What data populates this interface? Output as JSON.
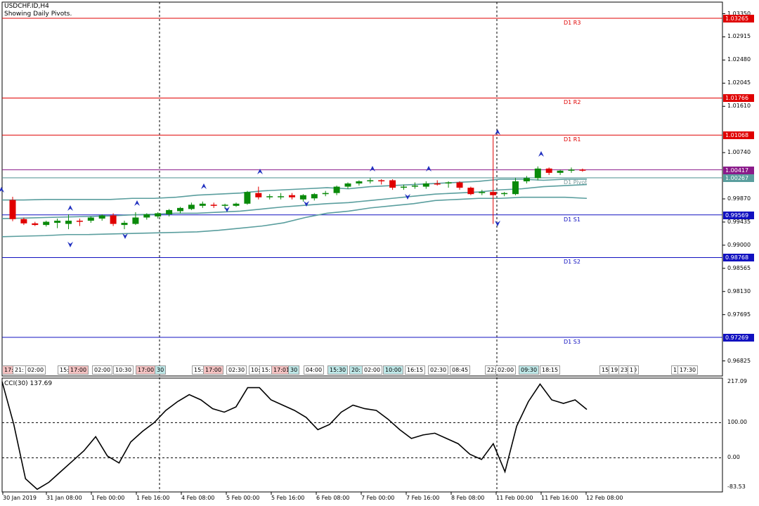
{
  "header": {
    "symbol": "USDCHF.ID,H4",
    "subtitle": "Showing Daily Pivots."
  },
  "price_axis": [
    "1.03350",
    "1.02915",
    "1.02480",
    "1.02045",
    "1.01610",
    "1.00740",
    "0.99569",
    "0.99435",
    "0.99000",
    "0.98565",
    "0.98130",
    "0.97695",
    "0.96825"
  ],
  "price_axis_plain": [
    "1.03350",
    "1.02915",
    "1.02480",
    "1.02045",
    "1.01610",
    "1.00740",
    "0.99870",
    "0.99435",
    "0.99000",
    "0.98565",
    "0.98130",
    "0.97695",
    "0.96825"
  ],
  "pivots": [
    {
      "name": "D1 R3",
      "value": "1.03265",
      "color": "#e00000"
    },
    {
      "name": "D1 R2",
      "value": "1.01766",
      "color": "#e00000"
    },
    {
      "name": "D1 R1",
      "value": "1.01068",
      "color": "#e00000"
    },
    {
      "name": "D1 Pivot",
      "value": "1.00267",
      "color": "#4a8f8f"
    },
    {
      "name": "D1 S1",
      "value": "0.99569",
      "color": "#1010c0"
    },
    {
      "name": "D1 S2",
      "value": "0.98768",
      "color": "#1010c0"
    },
    {
      "name": "D1 S3",
      "value": "0.97269",
      "color": "#1010c0"
    }
  ],
  "current_price": {
    "value": "1.00417",
    "color": "#8a1a8a"
  },
  "time_boxes": [
    "17:",
    "21:",
    "02:00",
    "15:",
    "17:00",
    "02:00",
    "10:30",
    "17:00",
    "30",
    "15:",
    "17:00",
    "02:30",
    "10:",
    "15:",
    "17:01",
    "30",
    "04:00",
    "15:30",
    "20:",
    "02:00",
    "10:00",
    "16:15",
    "02:30",
    "08:45",
    "22:",
    "02:00",
    "09:30",
    "18:15",
    "15:",
    "19:",
    "23:30",
    "1",
    "1",
    "17:30"
  ],
  "dates": [
    "30 Jan 2019",
    "31 Jan 08:00",
    "1 Feb 00:00",
    "1 Feb 16:00",
    "4 Feb 08:00",
    "5 Feb 00:00",
    "5 Feb 16:00",
    "6 Feb 08:00",
    "7 Feb 00:00",
    "7 Feb 16:00",
    "8 Feb 08:00",
    "11 Feb 00:00",
    "11 Feb 16:00",
    "12 Feb 08:00"
  ],
  "cci": {
    "label": "CCI(30) 137.69",
    "axis": [
      "217.09",
      "100.00",
      "0.00",
      "-83.53"
    ]
  },
  "chart_data": {
    "type": "candlestick",
    "symbol": "USDCHF.ID",
    "timeframe": "H4",
    "ylim": [
      0.966,
      1.035
    ],
    "candles": [
      {
        "o": 0.9985,
        "h": 0.9991,
        "l": 0.9945,
        "c": 0.9949
      },
      {
        "o": 0.9949,
        "h": 0.9952,
        "l": 0.9938,
        "c": 0.9941
      },
      {
        "o": 0.9941,
        "h": 0.9944,
        "l": 0.9936,
        "c": 0.9938
      },
      {
        "o": 0.9938,
        "h": 0.9946,
        "l": 0.9935,
        "c": 0.9944
      },
      {
        "o": 0.9942,
        "h": 0.995,
        "l": 0.9932,
        "c": 0.9946
      },
      {
        "o": 0.994,
        "h": 0.9958,
        "l": 0.993,
        "c": 0.9946
      },
      {
        "o": 0.9946,
        "h": 0.995,
        "l": 0.9936,
        "c": 0.9944
      },
      {
        "o": 0.9946,
        "h": 0.9954,
        "l": 0.9942,
        "c": 0.9952
      },
      {
        "o": 0.995,
        "h": 0.9958,
        "l": 0.9946,
        "c": 0.9956
      },
      {
        "o": 0.9956,
        "h": 0.996,
        "l": 0.9936,
        "c": 0.994
      },
      {
        "o": 0.9938,
        "h": 0.9946,
        "l": 0.993,
        "c": 0.9942
      },
      {
        "o": 0.994,
        "h": 0.9962,
        "l": 0.9938,
        "c": 0.9952
      },
      {
        "o": 0.9952,
        "h": 0.996,
        "l": 0.9948,
        "c": 0.9958
      },
      {
        "o": 0.9954,
        "h": 0.9962,
        "l": 0.995,
        "c": 0.996
      },
      {
        "o": 0.9958,
        "h": 0.9968,
        "l": 0.9954,
        "c": 0.9966
      },
      {
        "o": 0.9964,
        "h": 0.9972,
        "l": 0.996,
        "c": 0.997
      },
      {
        "o": 0.9968,
        "h": 0.998,
        "l": 0.9966,
        "c": 0.9976
      },
      {
        "o": 0.9974,
        "h": 0.9982,
        "l": 0.997,
        "c": 0.9978
      },
      {
        "o": 0.9976,
        "h": 0.998,
        "l": 0.997,
        "c": 0.9974
      },
      {
        "o": 0.9974,
        "h": 0.9978,
        "l": 0.9968,
        "c": 0.9976
      },
      {
        "o": 0.9974,
        "h": 0.998,
        "l": 0.9972,
        "c": 0.9978
      },
      {
        "o": 0.9978,
        "h": 1.0002,
        "l": 0.9976,
        "c": 1.0
      },
      {
        "o": 0.9998,
        "h": 1.001,
        "l": 0.9986,
        "c": 0.999
      },
      {
        "o": 0.999,
        "h": 0.9996,
        "l": 0.9986,
        "c": 0.9992
      },
      {
        "o": 0.9992,
        "h": 0.9998,
        "l": 0.9986,
        "c": 0.9992
      },
      {
        "o": 0.9994,
        "h": 0.9998,
        "l": 0.9986,
        "c": 0.999
      },
      {
        "o": 0.9986,
        "h": 0.9996,
        "l": 0.9982,
        "c": 0.9994
      },
      {
        "o": 0.9988,
        "h": 0.9998,
        "l": 0.9984,
        "c": 0.9996
      },
      {
        "o": 0.9996,
        "h": 1.0002,
        "l": 0.9992,
        "c": 0.9998
      },
      {
        "o": 0.9998,
        "h": 1.0012,
        "l": 0.9994,
        "c": 1.001
      },
      {
        "o": 1.001,
        "h": 1.0018,
        "l": 1.0006,
        "c": 1.0016
      },
      {
        "o": 1.0016,
        "h": 1.0022,
        "l": 1.0012,
        "c": 1.002
      },
      {
        "o": 1.002,
        "h": 1.0026,
        "l": 1.0016,
        "c": 1.0022
      },
      {
        "o": 1.0022,
        "h": 1.0024,
        "l": 1.0014,
        "c": 1.002
      },
      {
        "o": 1.0022,
        "h": 1.0024,
        "l": 1.0004,
        "c": 1.0008
      },
      {
        "o": 1.001,
        "h": 1.0014,
        "l": 1.0004,
        "c": 1.001
      },
      {
        "o": 1.001,
        "h": 1.0018,
        "l": 1.0006,
        "c": 1.0012
      },
      {
        "o": 1.001,
        "h": 1.002,
        "l": 1.0006,
        "c": 1.0016
      },
      {
        "o": 1.0016,
        "h": 1.0022,
        "l": 1.0012,
        "c": 1.0014
      },
      {
        "o": 1.0016,
        "h": 1.002,
        "l": 1.0008,
        "c": 1.0018
      },
      {
        "o": 1.0018,
        "h": 1.002,
        "l": 1.0004,
        "c": 1.0008
      },
      {
        "o": 1.0008,
        "h": 1.001,
        "l": 0.9994,
        "c": 0.9996
      },
      {
        "o": 0.9998,
        "h": 1.0004,
        "l": 0.9994,
        "c": 1.0
      },
      {
        "o": 1.0,
        "h": 1.0106,
        "l": 0.994,
        "c": 0.9994
      },
      {
        "o": 0.9996,
        "h": 1.0,
        "l": 0.9992,
        "c": 0.9998
      },
      {
        "o": 0.9996,
        "h": 1.0026,
        "l": 0.9994,
        "c": 1.002
      },
      {
        "o": 1.002,
        "h": 1.003,
        "l": 1.0016,
        "c": 1.0026
      },
      {
        "o": 1.0026,
        "h": 1.0048,
        "l": 1.0022,
        "c": 1.0044
      },
      {
        "o": 1.0044,
        "h": 1.0046,
        "l": 1.0032,
        "c": 1.0036
      },
      {
        "o": 1.0036,
        "h": 1.0042,
        "l": 1.0032,
        "c": 1.004
      },
      {
        "o": 1.004,
        "h": 1.0046,
        "l": 1.0036,
        "c": 1.0042
      },
      {
        "o": 1.0042,
        "h": 1.0044,
        "l": 1.0038,
        "c": 1.0041
      }
    ],
    "bands": {
      "upper": [
        0.9985,
        0.9985,
        0.9986,
        0.9986,
        0.9986,
        0.9986,
        0.9988,
        0.9988,
        0.999,
        0.9994,
        0.9996,
        0.9998,
        1.0002,
        1.0004,
        1.0006,
        1.0008,
        1.0006,
        1.001,
        1.0012,
        1.0014,
        1.0016,
        1.0018,
        1.002,
        1.0024,
        1.0024,
        1.0022,
        1.0024,
        1.0024
      ],
      "middle": [
        0.995,
        0.9951,
        0.9952,
        0.9953,
        0.9954,
        0.9955,
        0.9957,
        0.9958,
        0.996,
        0.996,
        0.9962,
        0.9964,
        0.9968,
        0.9972,
        0.9975,
        0.9978,
        0.998,
        0.9984,
        0.9988,
        0.9992,
        0.9996,
        0.9998,
        1.0,
        1.0004,
        1.0006,
        1.001,
        1.0012,
        1.0014
      ],
      "lower": [
        0.9916,
        0.9917,
        0.9918,
        0.992,
        0.992,
        0.9921,
        0.9922,
        0.9923,
        0.9924,
        0.9925,
        0.9928,
        0.9932,
        0.9936,
        0.9942,
        0.9952,
        0.996,
        0.9964,
        0.997,
        0.9974,
        0.9978,
        0.9984,
        0.9986,
        0.9988,
        0.9988,
        0.999,
        0.999,
        0.999,
        0.9988
      ]
    },
    "cci_values": [
      217,
      95,
      -60,
      -90,
      -70,
      -40,
      -10,
      20,
      60,
      5,
      -15,
      45,
      75,
      100,
      135,
      160,
      180,
      165,
      140,
      130,
      145,
      200,
      200,
      165,
      150,
      135,
      115,
      80,
      95,
      130,
      150,
      140,
      135,
      110,
      80,
      55,
      65,
      70,
      55,
      40,
      10,
      -5,
      40,
      -40,
      90,
      160,
      210,
      165,
      155,
      165,
      137.69
    ],
    "cci_ylim": [
      -83.53,
      217.09
    ]
  }
}
